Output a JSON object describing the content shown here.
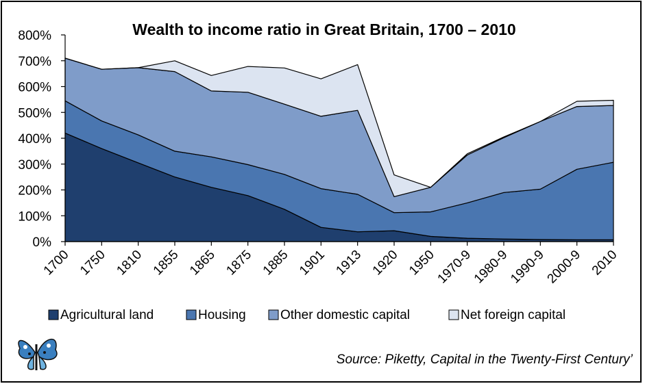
{
  "chart_data": {
    "type": "area",
    "stacked": true,
    "title": "Wealth to income ratio in Great Britain, 1700 – 2010",
    "categories": [
      "1700",
      "1750",
      "1810",
      "1855",
      "1865",
      "1875",
      "1885",
      "1901",
      "1913",
      "1920",
      "1950",
      "1970-9",
      "1980-9",
      "1990-9",
      "2000-9",
      "2010"
    ],
    "yticks": [
      "0%",
      "100%",
      "200%",
      "300%",
      "400%",
      "500%",
      "600%",
      "700%",
      "800%"
    ],
    "ylim": [
      0,
      800
    ],
    "grid": false,
    "legend_position": "bottom",
    "series": [
      {
        "name": "Agricultural land",
        "color": "#1f3f6e",
        "values": [
          420,
          360,
          305,
          250,
          210,
          178,
          125,
          55,
          38,
          42,
          20,
          13,
          10,
          8,
          7,
          7
        ]
      },
      {
        "name": "Housing",
        "color": "#4a76b0",
        "values": [
          125,
          107,
          108,
          100,
          118,
          120,
          135,
          150,
          145,
          70,
          95,
          137,
          180,
          195,
          273,
          300
        ]
      },
      {
        "name": "Other domestic capital",
        "color": "#7f9cc9",
        "values": [
          165,
          200,
          260,
          308,
          255,
          280,
          272,
          280,
          325,
          62,
          95,
          185,
          212,
          262,
          243,
          220
        ]
      },
      {
        "name": "Net foreign capital",
        "color": "#dce4f1",
        "values": [
          0,
          0,
          0,
          42,
          60,
          100,
          140,
          145,
          177,
          84,
          0,
          5,
          3,
          0,
          20,
          20
        ]
      }
    ],
    "source": "Source: Piketty, Capital in the Twenty-First Century’"
  },
  "logo": {
    "name": "butterfly-logo-icon"
  }
}
